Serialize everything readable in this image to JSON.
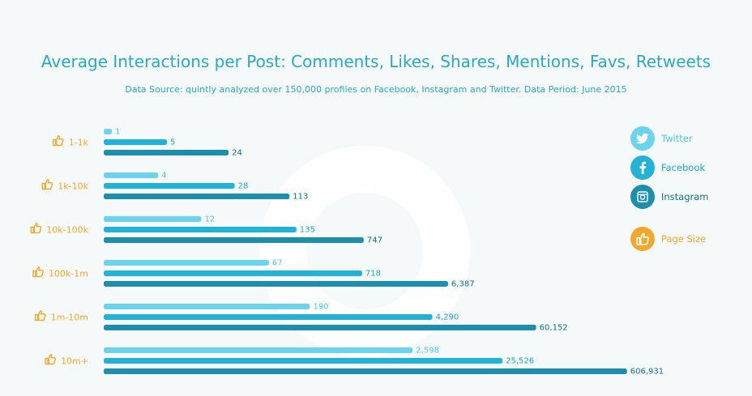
{
  "title": "Average Interactions per Post: Comments, Likes, Shares, Mentions, Favs, Retweets",
  "subtitle": "Data Source: quintly analyzed over 150,000 profiles on Facebook, Instagram and Twitter. Data Period: June 2015",
  "colors": {
    "twitter": "#6cd3ec",
    "facebook": "#22b2d6",
    "instagram": "#1d8fac",
    "page_size": "#f2a72e",
    "twitter_label": "#4cc8e4",
    "facebook_label": "#1aa5c8",
    "instagram_label": "#146f89",
    "title": "#2aa8c4"
  },
  "legend": [
    {
      "key": "twitter",
      "label": "Twitter",
      "icon": "twitter-bird-icon"
    },
    {
      "key": "facebook",
      "label": "Facebook",
      "icon": "facebook-f-icon"
    },
    {
      "key": "instagram",
      "label": "Instagram",
      "icon": "camera-icon"
    },
    {
      "key": "page_size",
      "label": "Page Size",
      "icon": "thumbs-up-icon"
    }
  ],
  "chart_data": {
    "type": "bar",
    "orientation": "horizontal",
    "scale": "log",
    "categories": [
      "1-1k",
      "1k-10k",
      "10k-100k",
      "100k-1m",
      "1m-10m",
      "10m+"
    ],
    "series": [
      {
        "name": "Twitter",
        "values": [
          1,
          4,
          12,
          67,
          190,
          2598
        ],
        "labels": [
          "1",
          "4",
          "12",
          "67",
          "190",
          "2,598"
        ]
      },
      {
        "name": "Facebook",
        "values": [
          5,
          28,
          135,
          718,
          4290,
          25526
        ],
        "labels": [
          "5",
          "28",
          "135",
          "718",
          "4,290",
          "25,526"
        ]
      },
      {
        "name": "Instagram",
        "values": [
          24,
          113,
          747,
          6387,
          60152,
          606931
        ],
        "labels": [
          "24",
          "113",
          "747",
          "6,387",
          "60,152",
          "606,931"
        ]
      }
    ],
    "title": "Average Interactions per Post: Comments, Likes, Shares, Mentions, Favs, Retweets",
    "xlabel": "",
    "ylabel": "",
    "grid": false,
    "legend_position": "right"
  }
}
